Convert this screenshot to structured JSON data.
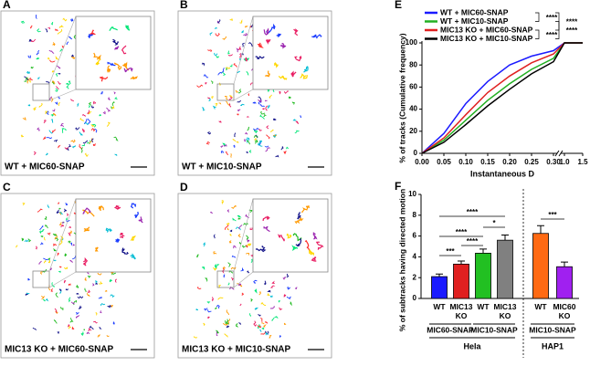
{
  "panels": [
    {
      "label": "A",
      "caption": "WT + MIC60-SNAP"
    },
    {
      "label": "B",
      "caption": "WT + MIC10-SNAP"
    },
    {
      "label": "C",
      "caption": "MIC13 KO + MIC60-SNAP"
    },
    {
      "label": "D",
      "caption": "MIC13 KO + MIC10-SNAP"
    }
  ],
  "chart_data": [
    {
      "type": "line",
      "panel": "E",
      "x_label": "Instantaneous D",
      "y_label": "% of tracks (Cumulative frequency)",
      "axis_break": true,
      "x": [
        0,
        0.05,
        0.1,
        0.15,
        0.2,
        0.25,
        0.3,
        1.0,
        1.5
      ],
      "xlim": [
        0,
        1.5
      ],
      "xticks": [
        {
          "value": 0,
          "label": "0.00"
        },
        {
          "value": 0.05,
          "label": "0.05"
        },
        {
          "value": 0.1,
          "label": "0.10"
        },
        {
          "value": 0.15,
          "label": "0.15"
        },
        {
          "value": 0.2,
          "label": "0.20"
        },
        {
          "value": 0.25,
          "label": "0.25"
        },
        {
          "value": 0.3,
          "label": "0.30"
        },
        {
          "value": 1.0,
          "label": "1.0"
        },
        1.5
      ],
      "ylim": [
        0,
        100
      ],
      "yticks": [
        0,
        20,
        40,
        60,
        80,
        100
      ],
      "series": [
        {
          "name": "WT + MIC60-SNAP",
          "color": "#1a1aff",
          "values": [
            0,
            18,
            45,
            65,
            80,
            88,
            93,
            100,
            100
          ]
        },
        {
          "name": "WT + MIC10-SNAP",
          "color": "#22b022",
          "values": [
            0,
            12,
            30,
            48,
            63,
            76,
            86,
            100,
            100
          ]
        },
        {
          "name": "MIC13 KO + MIC60-SNAP",
          "color": "#e02020",
          "values": [
            0,
            14,
            35,
            55,
            70,
            82,
            90,
            100,
            100
          ]
        },
        {
          "name": "MIC13 KO + MIC10-SNAP",
          "color": "#000000",
          "values": [
            0,
            10,
            26,
            43,
            58,
            72,
            83,
            100,
            100
          ]
        }
      ],
      "annotations": [
        "****",
        "****",
        "****",
        "****"
      ]
    },
    {
      "type": "bar",
      "panel": "F",
      "y_label": "% of subtracks having directed motion",
      "categories": [
        "WT",
        "MIC13 KO",
        "WT",
        "MIC13 KO",
        "WT",
        "MIC60 KO"
      ],
      "values": [
        2.1,
        3.3,
        4.35,
        5.6,
        6.25,
        3.05
      ],
      "errors": [
        0.25,
        0.3,
        0.4,
        0.5,
        0.75,
        0.45
      ],
      "colors": [
        "#1a1aff",
        "#e02020",
        "#22c022",
        "#808080",
        "#ff6a13",
        "#a020f0"
      ],
      "ylim": [
        0,
        10
      ],
      "yticks": [
        0,
        2,
        4,
        6,
        8,
        10
      ],
      "group_labels": [
        "MIC60-SNAP",
        "MIC10-SNAP",
        "MIC10-SNAP"
      ],
      "cell_lines": [
        "Hela",
        "HAP1"
      ],
      "annotations": [
        "****",
        "*",
        "****",
        "****",
        "***",
        "***"
      ]
    }
  ]
}
